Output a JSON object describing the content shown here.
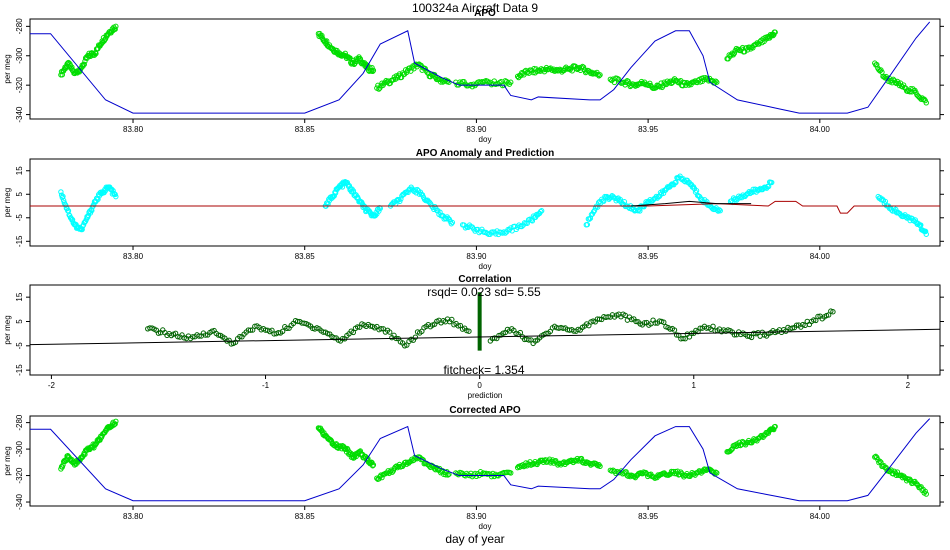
{
  "figure": {
    "title": "100324a    Aircraft Data 9",
    "footer_xlabel": "day of year"
  },
  "colors": {
    "points_bright": "#00dd00",
    "points_cyan": "#00ffff",
    "points_dark": "#006400",
    "profile_line": "#0000cc",
    "prediction_line": "#aa0000",
    "fit_line": "#000000"
  },
  "chart_data": [
    {
      "type": "scatter",
      "title": "APO",
      "xlabel": "doy",
      "ylabel": "per meg",
      "xlim": [
        83.77,
        84.035
      ],
      "ylim": [
        -343,
        -275
      ],
      "xticks": [
        83.8,
        83.85,
        83.9,
        83.95,
        84.0
      ],
      "xtick_labels": [
        "83.80",
        "83.85",
        "83.90",
        "83.95",
        "84.00"
      ],
      "yticks": [
        -340,
        -320,
        -300,
        -280
      ],
      "ytick_labels": [
        "-340",
        "-320",
        "-300",
        "-280"
      ],
      "series": [
        {
          "kind": "points",
          "color": "#00dd00",
          "segments": [
            {
              "x": [
                83.779,
                83.781,
                83.783,
                83.785,
                83.787,
                83.789,
                83.791,
                83.793,
                83.795
              ],
              "y": [
                -313,
                -305,
                -312,
                -308,
                -300,
                -298,
                -290,
                -284,
                -280
              ]
            },
            {
              "x": [
                83.854,
                83.856,
                83.858,
                83.86,
                83.862,
                83.864,
                83.866,
                83.868,
                83.87
              ],
              "y": [
                -285,
                -290,
                -295,
                -298,
                -300,
                -305,
                -302,
                -308,
                -310
              ]
            },
            {
              "x": [
                83.871,
                83.874,
                83.877,
                83.88,
                83.883,
                83.886,
                83.889,
                83.892
              ],
              "y": [
                -322,
                -318,
                -315,
                -310,
                -306,
                -312,
                -316,
                -318
              ]
            },
            {
              "x": [
                83.894,
                83.898,
                83.902,
                83.906,
                83.91
              ],
              "y": [
                -318,
                -320,
                -318,
                -319,
                -318
              ]
            },
            {
              "x": [
                83.912,
                83.915,
                83.918,
                83.921,
                83.924,
                83.927,
                83.93,
                83.933,
                83.936
              ],
              "y": [
                -314,
                -311,
                -310,
                -309,
                -310,
                -309,
                -308,
                -311,
                -313
              ]
            },
            {
              "x": [
                83.939,
                83.943,
                83.946,
                83.949,
                83.952,
                83.955,
                83.958,
                83.961,
                83.964,
                83.967,
                83.97
              ],
              "y": [
                -316,
                -318,
                -320,
                -318,
                -322,
                -319,
                -317,
                -320,
                -318,
                -316,
                -318
              ]
            },
            {
              "x": [
                83.973,
                83.976,
                83.979,
                83.982,
                83.985,
                83.987
              ],
              "y": [
                -302,
                -296,
                -296,
                -292,
                -288,
                -284
              ]
            },
            {
              "x": [
                84.016,
                84.019,
                84.022,
                84.025,
                84.028,
                84.031
              ],
              "y": [
                -305,
                -315,
                -318,
                -322,
                -325,
                -332
              ]
            }
          ]
        },
        {
          "kind": "line",
          "color": "#0000cc",
          "x": [
            83.77,
            83.776,
            83.792,
            83.8,
            83.83,
            83.85,
            83.86,
            83.867,
            83.872,
            83.88,
            83.882,
            83.89,
            83.895,
            83.908,
            83.91,
            83.916,
            83.918,
            83.933,
            83.936,
            83.94,
            83.945,
            83.952,
            83.958,
            83.962,
            83.966,
            83.968,
            83.976,
            83.984,
            83.988,
            83.994,
            84.0,
            84.008,
            84.014,
            84.02,
            84.028,
            84.032
          ],
          "y": [
            -285,
            -285,
            -330,
            -339,
            -339,
            -339,
            -330,
            -312,
            -292,
            -283,
            -305,
            -315,
            -320,
            -320,
            -327,
            -330,
            -328,
            -330,
            -330,
            -323,
            -308,
            -290,
            -283,
            -283,
            -300,
            -318,
            -330,
            -334,
            -336,
            -339,
            -339,
            -339,
            -335,
            -315,
            -288,
            -277
          ]
        }
      ]
    },
    {
      "type": "scatter",
      "title": "APO Anomaly and Prediction",
      "xlabel": "doy",
      "ylabel": "per meg",
      "xlim": [
        83.77,
        84.035
      ],
      "ylim": [
        -17,
        20
      ],
      "xticks": [
        83.8,
        83.85,
        83.9,
        83.95,
        84.0
      ],
      "xtick_labels": [
        "83.80",
        "83.85",
        "83.90",
        "83.95",
        "84.00"
      ],
      "yticks": [
        -15,
        -5,
        5,
        15
      ],
      "ytick_labels": [
        "-15",
        "-5",
        "5",
        "15"
      ],
      "series": [
        {
          "kind": "points",
          "color": "#00ffff",
          "segments": [
            {
              "x": [
                83.779,
                83.781,
                83.783,
                83.785,
                83.787,
                83.789,
                83.791,
                83.793,
                83.795
              ],
              "y": [
                6,
                -2,
                -8,
                -10,
                -4,
                2,
                6,
                8,
                4
              ]
            },
            {
              "x": [
                83.856,
                83.858,
                83.86,
                83.862,
                83.864,
                83.866,
                83.868,
                83.87,
                83.872
              ],
              "y": [
                0,
                4,
                8,
                10,
                6,
                2,
                -2,
                -4,
                -1
              ]
            },
            {
              "x": [
                83.875,
                83.878,
                83.881,
                83.884,
                83.887,
                83.89,
                83.893
              ],
              "y": [
                0,
                3,
                8,
                5,
                0,
                -4,
                -7
              ]
            },
            {
              "x": [
                83.896,
                83.9,
                83.904,
                83.908,
                83.912,
                83.916,
                83.919
              ],
              "y": [
                -8,
                -10,
                -12,
                -11,
                -9,
                -6,
                -2
              ]
            },
            {
              "x": [
                83.932,
                83.935,
                83.938,
                83.941,
                83.944,
                83.947,
                83.95,
                83.953,
                83.956,
                83.959,
                83.962,
                83.965,
                83.968,
                83.971
              ],
              "y": [
                -8,
                0,
                4,
                3,
                0,
                -2,
                2,
                4,
                8,
                12,
                10,
                4,
                0,
                -2
              ]
            },
            {
              "x": [
                83.974,
                83.977,
                83.98,
                83.983,
                83.986
              ],
              "y": [
                2,
                4,
                6,
                7,
                10
              ]
            },
            {
              "x": [
                84.017,
                84.02,
                84.023,
                84.026,
                84.029,
                84.031
              ],
              "y": [
                4,
                0,
                -3,
                -5,
                -8,
                -12
              ]
            }
          ]
        },
        {
          "kind": "line",
          "color": "#aa0000",
          "x": [
            83.77,
            83.93,
            83.95,
            83.97,
            83.985,
            83.987,
            83.993,
            83.995,
            84.005,
            84.006,
            84.008,
            84.01,
            84.035
          ],
          "y": [
            0,
            0,
            0,
            1,
            0,
            2,
            2,
            0,
            0,
            -3,
            -3,
            0,
            0
          ]
        },
        {
          "kind": "line",
          "color": "#000000",
          "x": [
            83.945,
            83.955,
            83.962,
            83.97,
            83.98
          ],
          "y": [
            0,
            1,
            2,
            1,
            1
          ]
        }
      ]
    },
    {
      "type": "scatter",
      "title": "Correlation",
      "xlabel": "prediction",
      "ylabel": "per meg",
      "xlim": [
        -2.1,
        2.15
      ],
      "ylim": [
        -17,
        20
      ],
      "xticks": [
        -2,
        -1,
        0,
        1,
        2
      ],
      "xtick_labels": [
        "-2",
        "-1",
        "0",
        "1",
        "2"
      ],
      "yticks": [
        -15,
        -5,
        5,
        15
      ],
      "ytick_labels": [
        "-15",
        "-5",
        "5",
        "15"
      ],
      "annotations": {
        "stats": "rsqd= 0.023 sd= 5.55",
        "fitcheck": "fitcheck= 1.354"
      },
      "series": [
        {
          "kind": "points",
          "color": "#006400",
          "segments": [
            {
              "x": [
                -1.55,
                -1.45,
                -1.35,
                -1.25,
                -1.15,
                -1.05,
                -0.95,
                -0.85,
                -0.75,
                -0.65,
                -0.55,
                -0.45,
                -0.35,
                -0.25,
                -0.15,
                -0.05
              ],
              "y": [
                2,
                0,
                -2,
                1,
                -4,
                3,
                0,
                5,
                2,
                -3,
                4,
                2,
                -5,
                3,
                6,
                1
              ]
            },
            {
              "x": [
                0.05,
                0.15,
                0.25,
                0.35,
                0.45,
                0.55,
                0.65,
                0.75,
                0.85,
                0.95,
                1.05,
                1.15,
                1.25,
                1.35,
                1.45,
                1.55,
                1.65
              ],
              "y": [
                -3,
                2,
                -4,
                3,
                1,
                6,
                8,
                4,
                5,
                -2,
                3,
                1,
                -1,
                0,
                2,
                5,
                9
              ]
            }
          ]
        },
        {
          "kind": "vertical-stack",
          "color": "#006400",
          "x": 0,
          "y_from": -7,
          "y_to": 17
        },
        {
          "kind": "line",
          "color": "#000000",
          "x": [
            -2.1,
            2.15
          ],
          "y": [
            -4.5,
            1.8
          ]
        }
      ]
    },
    {
      "type": "scatter",
      "title": "Corrected APO",
      "xlabel": "doy",
      "ylabel": "per meg",
      "xlim": [
        83.77,
        84.035
      ],
      "ylim": [
        -343,
        -275
      ],
      "xticks": [
        83.8,
        83.85,
        83.9,
        83.95,
        84.0
      ],
      "xtick_labels": [
        "83.80",
        "83.85",
        "83.90",
        "83.95",
        "84.00"
      ],
      "yticks": [
        -340,
        -320,
        -300,
        -280
      ],
      "ytick_labels": [
        "-340",
        "-320",
        "-300",
        "-280"
      ],
      "series": [
        {
          "kind": "points",
          "color": "#00dd00",
          "segments": [
            {
              "x": [
                83.779,
                83.781,
                83.783,
                83.785,
                83.787,
                83.789,
                83.791,
                83.793,
                83.795
              ],
              "y": [
                -315,
                -305,
                -312,
                -306,
                -300,
                -297,
                -290,
                -284,
                -279
              ]
            },
            {
              "x": [
                83.854,
                83.856,
                83.858,
                83.86,
                83.862,
                83.864,
                83.866,
                83.868,
                83.87
              ],
              "y": [
                -284,
                -290,
                -296,
                -298,
                -300,
                -306,
                -302,
                -308,
                -312
              ]
            },
            {
              "x": [
                83.871,
                83.874,
                83.877,
                83.88,
                83.883,
                83.886,
                83.889,
                83.892
              ],
              "y": [
                -322,
                -318,
                -314,
                -310,
                -306,
                -312,
                -316,
                -319
              ]
            },
            {
              "x": [
                83.894,
                83.898,
                83.902,
                83.906,
                83.91
              ],
              "y": [
                -318,
                -320,
                -318,
                -320,
                -318
              ]
            },
            {
              "x": [
                83.912,
                83.915,
                83.918,
                83.921,
                83.924,
                83.927,
                83.93,
                83.933,
                83.936
              ],
              "y": [
                -314,
                -311,
                -310,
                -309,
                -311,
                -309,
                -308,
                -311,
                -313
              ]
            },
            {
              "x": [
                83.939,
                83.943,
                83.946,
                83.949,
                83.952,
                83.955,
                83.958,
                83.961,
                83.964,
                83.967,
                83.97
              ],
              "y": [
                -316,
                -318,
                -321,
                -318,
                -322,
                -319,
                -317,
                -320,
                -318,
                -316,
                -318
              ]
            },
            {
              "x": [
                83.973,
                83.976,
                83.979,
                83.982,
                83.985,
                83.987
              ],
              "y": [
                -302,
                -296,
                -295,
                -292,
                -288,
                -283
              ]
            },
            {
              "x": [
                84.016,
                84.019,
                84.022,
                84.025,
                84.028,
                84.031
              ],
              "y": [
                -306,
                -314,
                -318,
                -322,
                -326,
                -334
              ]
            }
          ]
        },
        {
          "kind": "line",
          "color": "#0000cc",
          "x": [
            83.77,
            83.776,
            83.792,
            83.8,
            83.83,
            83.85,
            83.86,
            83.867,
            83.872,
            83.88,
            83.882,
            83.89,
            83.895,
            83.908,
            83.91,
            83.916,
            83.918,
            83.933,
            83.936,
            83.94,
            83.945,
            83.952,
            83.958,
            83.962,
            83.966,
            83.968,
            83.976,
            83.984,
            83.988,
            83.994,
            84.0,
            84.008,
            84.014,
            84.02,
            84.028,
            84.032
          ],
          "y": [
            -285,
            -285,
            -330,
            -339,
            -339,
            -339,
            -330,
            -312,
            -292,
            -283,
            -305,
            -315,
            -320,
            -320,
            -327,
            -330,
            -328,
            -330,
            -330,
            -323,
            -308,
            -290,
            -283,
            -283,
            -300,
            -318,
            -330,
            -334,
            -336,
            -339,
            -339,
            -339,
            -335,
            -315,
            -288,
            -277
          ]
        }
      ]
    }
  ]
}
